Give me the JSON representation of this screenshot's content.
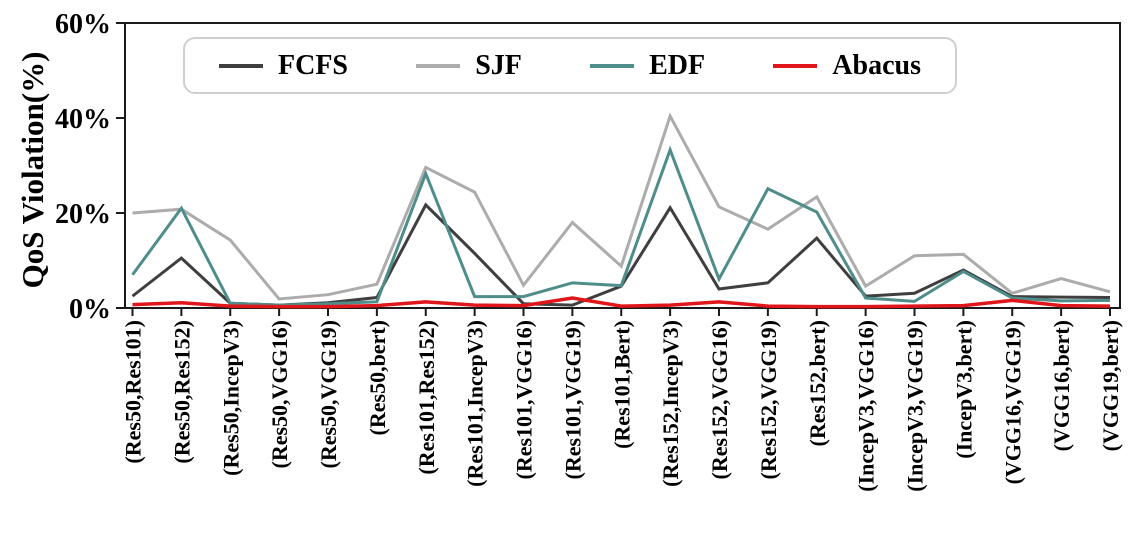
{
  "chart_data": {
    "type": "line",
    "title": "",
    "xlabel": "",
    "ylabel": "QoS Violation(%)",
    "ylim": [
      0,
      60
    ],
    "grid": false,
    "legend_position": "top-inside",
    "yticks": [
      {
        "value": 0,
        "label": "0%"
      },
      {
        "value": 20,
        "label": "20%"
      },
      {
        "value": 40,
        "label": "40%"
      },
      {
        "value": 60,
        "label": "60%"
      }
    ],
    "categories": [
      "(Res50,Res101)",
      "(Res50,Res152)",
      "(Res50,IncepV3)",
      "(Res50,VGG16)",
      "(Res50,VGG19)",
      "(Res50,bert)",
      "(Res101,Res152)",
      "(Res101,IncepV3)",
      "(Res101,VGG16)",
      "(Res101,VGG19)",
      "(Res101,Bert)",
      "(Res152,IncepV3)",
      "(Res152,VGG16)",
      "(Res152,VGG19)",
      "(Res152,bert)",
      "(IncepV3,VGG16)",
      "(IncepV3,VGG19)",
      "(IncepV3,bert)",
      "(VGG16,VGG19)",
      "(VGG16,bert)",
      "(VGG19,bert)"
    ],
    "series": [
      {
        "name": "FCFS",
        "color": "#3f3f3f",
        "values": [
          2.5,
          10.5,
          1.0,
          0.6,
          1.1,
          2.2,
          21.7,
          11.5,
          0.9,
          0.6,
          4.6,
          21.1,
          4.0,
          5.3,
          14.7,
          2.5,
          3.1,
          8.0,
          2.4,
          2.3,
          2.2
        ]
      },
      {
        "name": "SJF",
        "color": "#acacac",
        "values": [
          20.0,
          20.8,
          14.3,
          1.9,
          2.8,
          5.0,
          29.6,
          24.4,
          4.8,
          18.0,
          8.8,
          40.4,
          21.3,
          16.6,
          23.4,
          4.6,
          11.0,
          11.3,
          3.1,
          6.2,
          3.4
        ]
      },
      {
        "name": "EDF",
        "color": "#4e8d8a",
        "values": [
          7.0,
          21.0,
          1.0,
          0.6,
          0.9,
          1.3,
          28.3,
          2.4,
          2.4,
          5.3,
          4.7,
          33.3,
          6.1,
          25.1,
          20.2,
          2.1,
          1.4,
          7.7,
          2.1,
          1.5,
          1.6
        ]
      },
      {
        "name": "Abacus",
        "color": "#e0161b",
        "values": [
          0.7,
          1.1,
          0.4,
          0.3,
          0.3,
          0.5,
          1.3,
          0.6,
          0.5,
          2.1,
          0.4,
          0.6,
          1.3,
          0.4,
          0.3,
          0.3,
          0.4,
          0.5,
          1.6,
          0.5,
          0.4
        ]
      }
    ]
  },
  "style": {
    "axis_color": "#1a1a1a",
    "tick_label_color": "#000000",
    "legend_border_color": "#cfcfcf",
    "background": "#ffffff"
  }
}
